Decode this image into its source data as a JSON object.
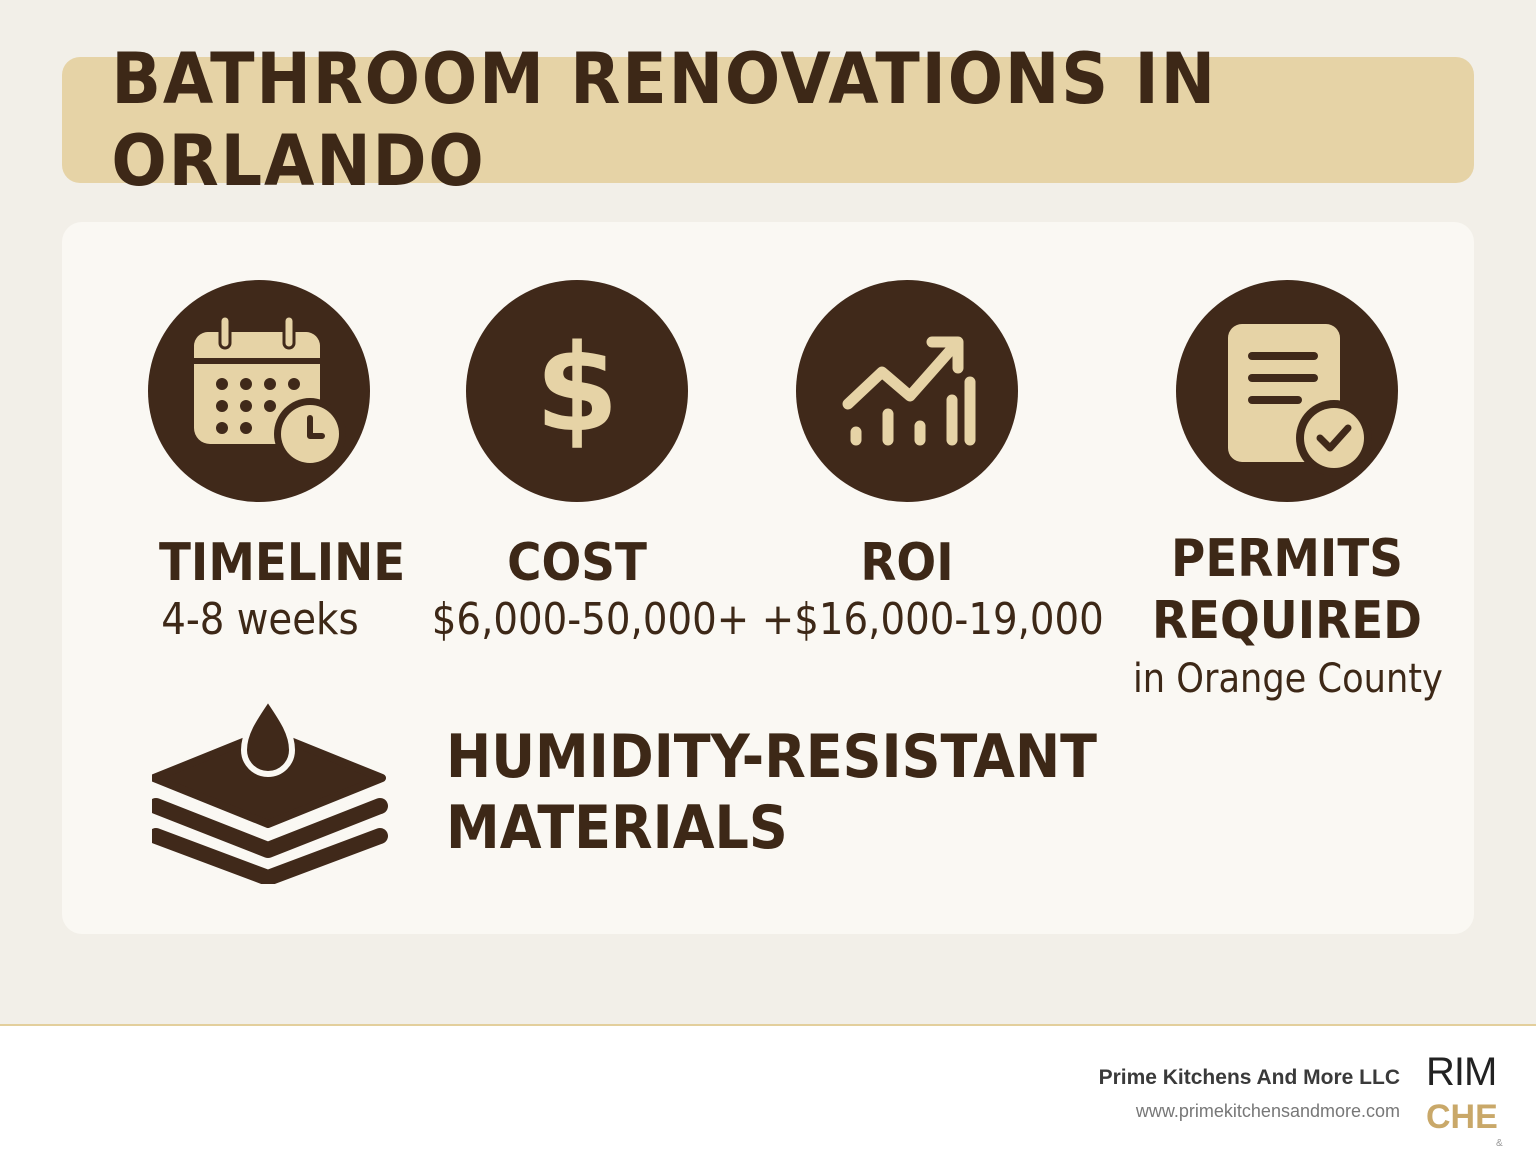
{
  "title": "BATHROOM RENOVATIONS IN ORLANDO",
  "cards": {
    "timeline": {
      "icon": "calendar-clock-icon",
      "title": "TIMELINE",
      "value": "4-8 weeks"
    },
    "cost": {
      "icon": "dollar-icon",
      "title": "COST",
      "value": "$6,000-50,000+"
    },
    "roi": {
      "icon": "trending-chart-icon",
      "title": "ROI",
      "value": "+$16,000-19,000"
    },
    "permits": {
      "icon": "document-check-icon",
      "title_line1": "PERMITS",
      "title_line2": "REQUIRED",
      "value": "in Orange County"
    }
  },
  "humidity": {
    "icon": "water-drop-layers-icon",
    "line1": "HUMIDITY-RESISTANT",
    "line2": "MATERIALS"
  },
  "footer": {
    "company": "Prime Kitchens And More LLC",
    "url": "www.primekitchensandmore.com",
    "logo_top": "RIM",
    "logo_bottom": "CHE",
    "logo_amp": "&"
  },
  "colors": {
    "background": "#f2efe8",
    "banner": "#e6d3a6",
    "dark_brown": "#40291a",
    "tan": "#e6d3a6",
    "gold": "#c9a869"
  }
}
